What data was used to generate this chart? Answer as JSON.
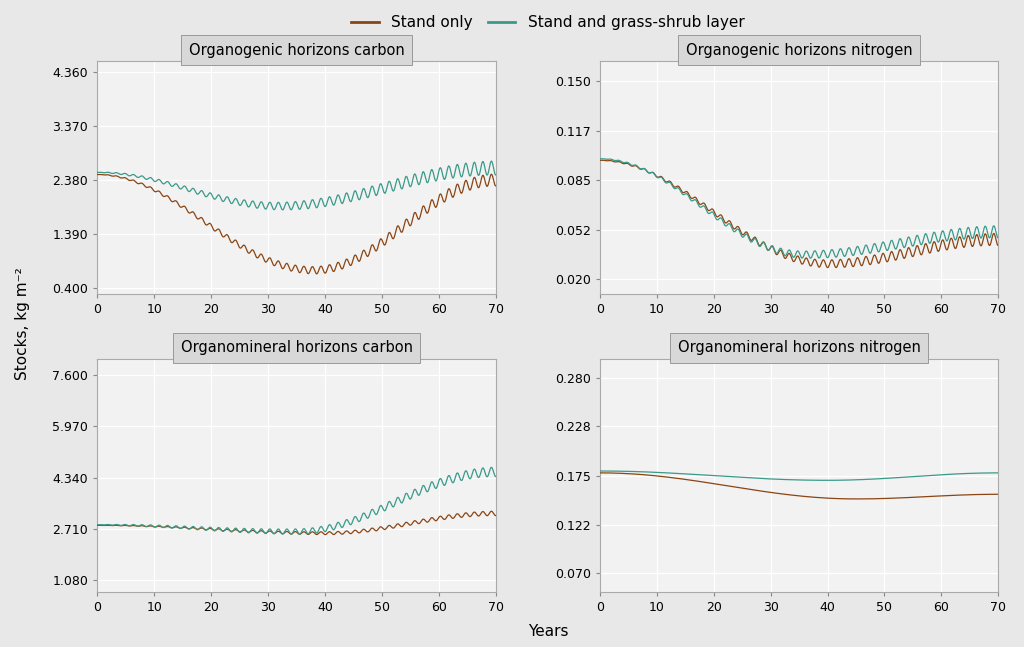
{
  "legend_labels": [
    "Stand only",
    "Stand and grass-shrub layer"
  ],
  "color_brown": "#8B4513",
  "color_teal": "#3A9A8A",
  "subplots": [
    {
      "title": "Organogenic horizons carbon",
      "yticks": [
        0.4,
        1.39,
        2.38,
        3.37,
        4.36
      ],
      "ylim": [
        0.28,
        4.56
      ],
      "brown": {
        "start": 2.48,
        "mid_val": 0.72,
        "mid_x": 38,
        "end_val": 2.38,
        "osc_amp": 0.11,
        "osc_freq": 4.2
      },
      "teal": {
        "start": 2.52,
        "mid_val": 1.9,
        "mid_x": 32,
        "end_val": 2.6,
        "osc_amp": 0.13,
        "osc_freq": 4.2
      }
    },
    {
      "title": "Organogenic horizons nitrogen",
      "yticks": [
        0.02,
        0.052,
        0.085,
        0.117,
        0.15
      ],
      "ylim": [
        0.01,
        0.163
      ],
      "brown": {
        "start": 0.098,
        "mid_val": 0.03,
        "mid_x": 40,
        "end_val": 0.046,
        "osc_amp": 0.004,
        "osc_freq": 4.2
      },
      "teal": {
        "start": 0.099,
        "mid_val": 0.036,
        "mid_x": 36,
        "end_val": 0.051,
        "osc_amp": 0.004,
        "osc_freq": 4.2
      }
    },
    {
      "title": "Organomineral horizons carbon",
      "yticks": [
        1.08,
        2.71,
        4.34,
        5.97,
        7.6
      ],
      "ylim": [
        0.7,
        8.1
      ],
      "brown": {
        "start": 2.82,
        "mid_val": 2.57,
        "mid_x": 40,
        "end_val": 3.2,
        "osc_amp": 0.07,
        "osc_freq": 4.2
      },
      "teal": {
        "start": 2.84,
        "mid_val": 2.62,
        "mid_x": 35,
        "end_val": 4.52,
        "osc_amp": 0.15,
        "osc_freq": 4.2
      }
    },
    {
      "title": "Organomineral horizons nitrogen",
      "yticks": [
        0.07,
        0.122,
        0.175,
        0.228,
        0.28
      ],
      "ylim": [
        0.05,
        0.3
      ],
      "brown": {
        "start": 0.178,
        "mid_val": 0.15,
        "mid_x": 45,
        "end_val": 0.155,
        "osc_amp": 0.0,
        "osc_freq": 4.2
      },
      "teal": {
        "start": 0.18,
        "mid_val": 0.17,
        "mid_x": 40,
        "end_val": 0.178,
        "osc_amp": 0.0,
        "osc_freq": 4.2
      }
    }
  ],
  "bg_color": "#E8E8E8",
  "plot_bg_color": "#F2F2F2",
  "grid_color": "#FFFFFF",
  "title_bg": "#D8D8D8",
  "xlabel": "Years",
  "ylabel": "Stocks, kg m⁻²",
  "xticks": [
    0,
    10,
    20,
    30,
    40,
    50,
    60,
    70
  ],
  "xlim": [
    0,
    70
  ]
}
